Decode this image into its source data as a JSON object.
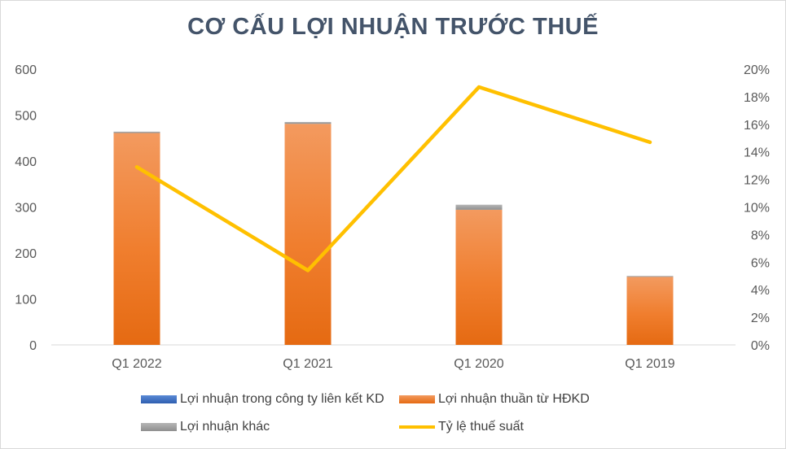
{
  "chart_data": {
    "type": "bar",
    "title": "CƠ CẤU LỢI NHUẬN TRƯỚC THUẾ",
    "categories": [
      "Q1 2022",
      "Q1 2021",
      "Q1 2020",
      "Q1 2019"
    ],
    "ylim": [
      0,
      600
    ],
    "y_ticks": [
      "0",
      "100",
      "200",
      "300",
      "400",
      "500",
      "600"
    ],
    "y2lim": [
      0,
      0.2
    ],
    "y2_ticks": [
      "0%",
      "2%",
      "4%",
      "6%",
      "8%",
      "10%",
      "12%",
      "14%",
      "16%",
      "18%",
      "20%"
    ],
    "grid": false,
    "legend_position": "bottom",
    "stacked": true,
    "series": [
      {
        "name": "Lợi nhuận trong công ty liên kết KD",
        "kind": "bar",
        "color": "#4472c4",
        "values": [
          0,
          0,
          0,
          0
        ]
      },
      {
        "name": "Lợi nhuận thuần từ HĐKD",
        "kind": "bar",
        "color": "#ed7d31",
        "values": [
          461,
          481,
          294,
          148
        ]
      },
      {
        "name": "Lợi nhuận khác",
        "kind": "bar",
        "color": "#a5a5a5",
        "values": [
          3,
          4,
          11,
          2
        ]
      },
      {
        "name": "Tỷ lệ thuế suất",
        "kind": "line",
        "axis": "secondary",
        "color": "#ffc000",
        "values": [
          0.129,
          0.054,
          0.187,
          0.147
        ]
      }
    ]
  }
}
